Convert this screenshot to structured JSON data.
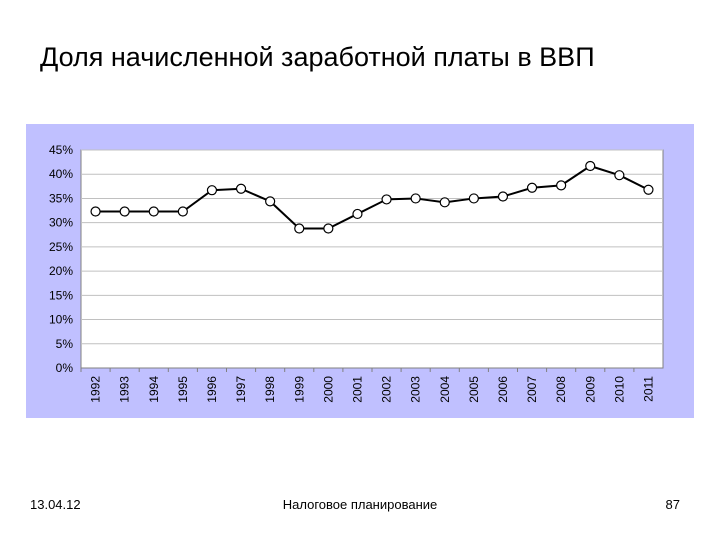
{
  "title": "Доля начисленной заработной платы в ВВП",
  "footer": {
    "date": "13.04.12",
    "center": "Налоговое планирование",
    "page": "87"
  },
  "colors": {
    "chart_area_bg": "#c0c0ff",
    "plot_bg": "#ffffff",
    "line": "#000000",
    "marker_fill": "#ffffff",
    "grid": "#c0c0c0"
  },
  "chart_data": {
    "type": "line",
    "categories": [
      "1992",
      "1993",
      "1994",
      "1995",
      "1996",
      "1997",
      "1998",
      "1999",
      "2000",
      "2001",
      "2002",
      "2003",
      "2004",
      "2005",
      "2006",
      "2007",
      "2008",
      "2009",
      "2010",
      "2011"
    ],
    "series": [
      {
        "values": [
          32.3,
          32.3,
          32.3,
          32.3,
          36.7,
          37.0,
          34.4,
          28.8,
          28.8,
          31.8,
          34.8,
          35.0,
          34.2,
          35.0,
          35.4,
          37.2,
          37.7,
          41.7,
          39.8,
          36.8
        ]
      }
    ],
    "y_ticks": [
      "0%",
      "5%",
      "10%",
      "15%",
      "20%",
      "25%",
      "30%",
      "35%",
      "40%",
      "45%"
    ],
    "ylim": [
      0,
      45
    ],
    "grid": true,
    "legend": "none"
  }
}
